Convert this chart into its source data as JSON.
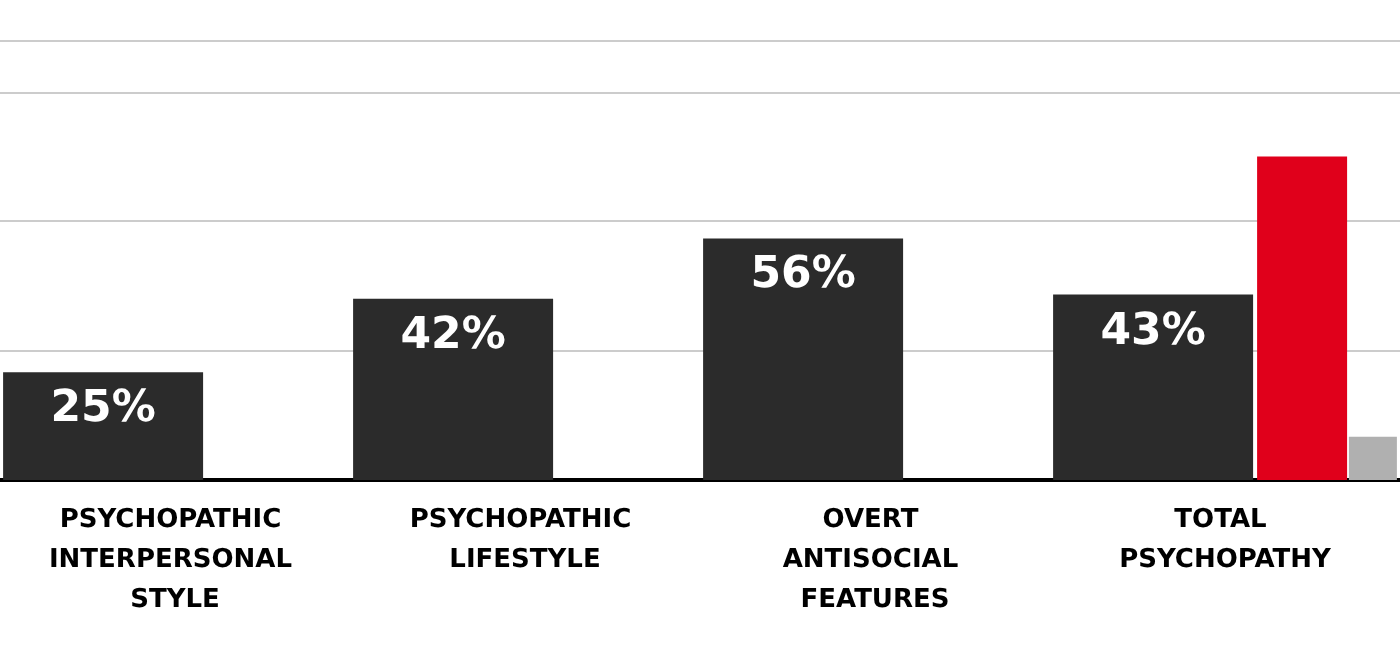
{
  "chart_data": {
    "type": "bar",
    "categories": [
      "PSYCHOPATHIC INTERPERSONAL STYLE",
      "PSYCHOPATHIC LIFESTYLE",
      "OVERT ANTISOCIAL FEATURES",
      "TOTAL PSYCHOPATHY"
    ],
    "series": [
      {
        "color": "#2b2b2b",
        "values": [
          25,
          42,
          56,
          43
        ],
        "value_labels": [
          "25%",
          "42%",
          "56%",
          "43%"
        ]
      },
      {
        "color": "#e0001b",
        "values": [
          null,
          null,
          null,
          75
        ]
      },
      {
        "color": "#b0b0b0",
        "values": [
          null,
          null,
          null,
          10
        ]
      }
    ],
    "ylim": [
      0,
      102
    ],
    "grid": "y"
  }
}
